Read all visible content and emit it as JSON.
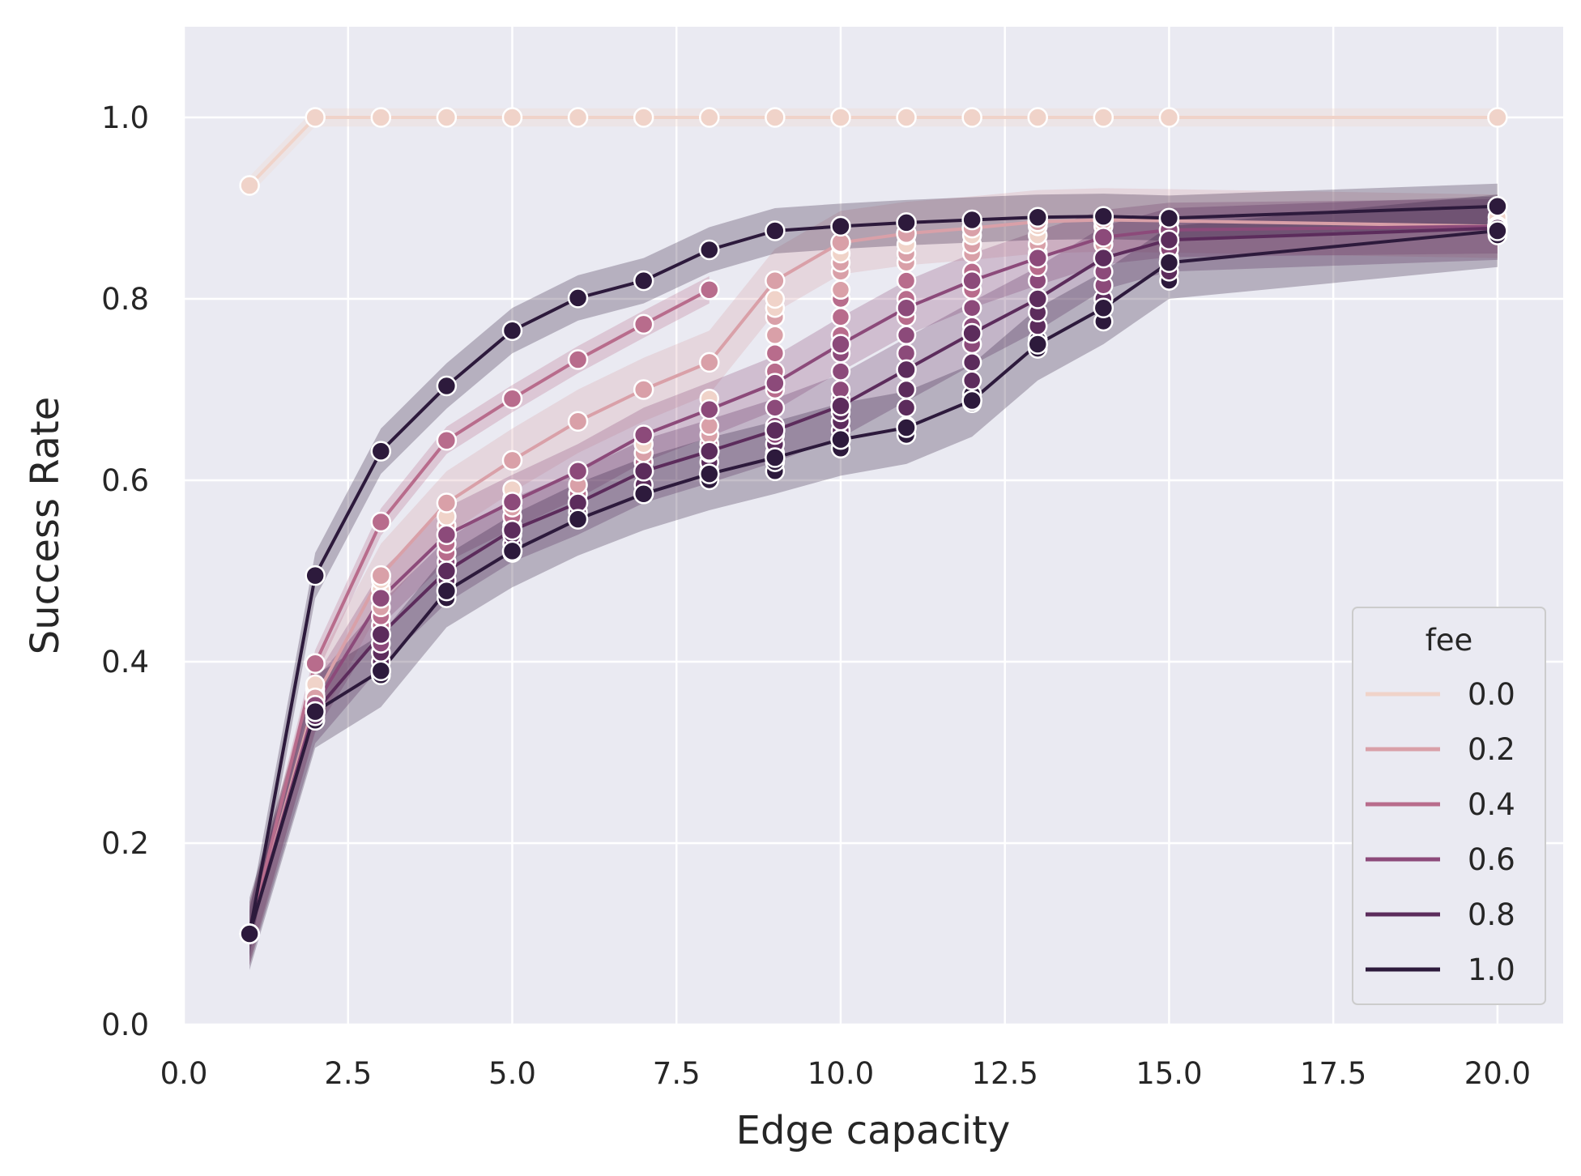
{
  "chart_data": {
    "type": "line",
    "xlabel": "Edge capacity",
    "ylabel": "Success Rate",
    "xlim": [
      0,
      21
    ],
    "ylim": [
      0,
      1.1
    ],
    "xticks": [
      "0.0",
      "2.5",
      "5.0",
      "7.5",
      "10.0",
      "12.5",
      "15.0",
      "17.5",
      "20.0"
    ],
    "yticks": [
      "0.0",
      "0.2",
      "0.4",
      "0.6",
      "0.8",
      "1.0"
    ],
    "grid": true,
    "legend": {
      "title": "fee",
      "position": "lower-right",
      "entries": [
        "0.0",
        "0.2",
        "0.4",
        "0.6",
        "0.8",
        "1.0"
      ]
    },
    "series": [
      {
        "name": "0.0",
        "color": "#f0d3c9",
        "x": [
          1,
          2,
          3,
          4,
          5,
          6,
          7,
          8,
          9,
          10,
          11,
          12,
          13,
          14,
          15,
          20
        ],
        "y": [
          0.925,
          1.0,
          1.0,
          1.0,
          1.0,
          1.0,
          1.0,
          1.0,
          1.0,
          1.0,
          1.0,
          1.0,
          1.0,
          1.0,
          1.0,
          1.0
        ],
        "band": 0.01
      },
      {
        "name": "0.2",
        "color": "#d9a0a8",
        "x": [
          1,
          2,
          3,
          4,
          5,
          6,
          7,
          8,
          9,
          10,
          11,
          12,
          13,
          14,
          15,
          20
        ],
        "y": [
          0.1,
          0.36,
          0.495,
          0.575,
          0.622,
          0.665,
          0.7,
          0.73,
          0.82,
          0.862,
          0.872,
          0.878,
          0.885,
          0.887,
          0.886,
          0.88
        ],
        "band": 0.035
      },
      {
        "name": "0.4",
        "color": "#b86c8c",
        "x": [
          1,
          2,
          3,
          4,
          5,
          6,
          7,
          8
        ],
        "y": [
          0.1,
          0.398,
          0.554,
          0.644,
          0.69,
          0.733,
          0.772,
          0.81
        ],
        "band": 0.015
      },
      {
        "name": "0.6",
        "color": "#8c4a7a",
        "x": [
          1,
          2,
          3,
          4,
          5,
          6,
          7,
          8,
          9,
          10,
          11,
          12,
          13,
          14,
          15,
          20
        ],
        "y": [
          0.1,
          0.352,
          0.47,
          0.54,
          0.576,
          0.61,
          0.65,
          0.678,
          0.707,
          0.75,
          0.79,
          0.82,
          0.845,
          0.868,
          0.876,
          0.88
        ],
        "band": 0.03
      },
      {
        "name": "0.8",
        "color": "#5c2c5c",
        "x": [
          1,
          2,
          3,
          4,
          5,
          6,
          7,
          8,
          9,
          10,
          11,
          12,
          13,
          14,
          15,
          20
        ],
        "y": [
          0.1,
          0.345,
          0.43,
          0.5,
          0.545,
          0.575,
          0.61,
          0.632,
          0.655,
          0.682,
          0.722,
          0.762,
          0.8,
          0.845,
          0.865,
          0.878
        ],
        "band": 0.035
      },
      {
        "name": "1.0",
        "color": "#2d1a3c",
        "x": [
          1,
          2,
          3,
          4,
          5,
          6,
          7,
          8,
          9,
          10,
          11,
          12,
          13,
          14,
          15,
          20
        ],
        "y": [
          0.1,
          0.345,
          0.39,
          0.478,
          0.522,
          0.557,
          0.585,
          0.607,
          0.625,
          0.645,
          0.658,
          0.688,
          0.75,
          0.79,
          0.84,
          0.875
        ],
        "band": 0.04
      },
      {
        "name": "",
        "color": "#2d1a3c",
        "x": [
          1,
          2,
          3,
          4,
          5,
          6,
          7,
          8,
          9,
          10,
          11,
          12,
          13,
          14,
          15,
          20
        ],
        "y": [
          0.1,
          0.495,
          0.632,
          0.704,
          0.765,
          0.801,
          0.82,
          0.854,
          0.875,
          0.88,
          0.884,
          0.887,
          0.89,
          0.891,
          0.889,
          0.902
        ],
        "band": 0.025
      }
    ],
    "scatter_clusters": [
      {
        "x": 2,
        "y": [
          0.335,
          0.34,
          0.345,
          0.35,
          0.355,
          0.36,
          0.365,
          0.37,
          0.375
        ]
      },
      {
        "x": 3,
        "y": [
          0.385,
          0.39,
          0.4,
          0.41,
          0.42,
          0.43,
          0.44,
          0.45,
          0.46,
          0.47,
          0.48,
          0.49
        ]
      },
      {
        "x": 4,
        "y": [
          0.47,
          0.48,
          0.49,
          0.5,
          0.51,
          0.52,
          0.53,
          0.54,
          0.55,
          0.56
        ]
      },
      {
        "x": 5,
        "y": [
          0.52,
          0.53,
          0.54,
          0.55,
          0.56,
          0.57,
          0.58,
          0.59
        ]
      },
      {
        "x": 6,
        "y": [
          0.557,
          0.565,
          0.575,
          0.585,
          0.595,
          0.61
        ]
      },
      {
        "x": 7,
        "y": [
          0.585,
          0.595,
          0.61,
          0.62,
          0.63,
          0.64
        ]
      },
      {
        "x": 8,
        "y": [
          0.6,
          0.61,
          0.62,
          0.63,
          0.64,
          0.65,
          0.66,
          0.69
        ]
      },
      {
        "x": 9,
        "y": [
          0.61,
          0.62,
          0.63,
          0.64,
          0.65,
          0.66,
          0.68,
          0.7,
          0.72,
          0.74,
          0.76,
          0.78,
          0.79,
          0.8
        ]
      },
      {
        "x": 10,
        "y": [
          0.635,
          0.645,
          0.655,
          0.665,
          0.675,
          0.69,
          0.7,
          0.72,
          0.74,
          0.76,
          0.78,
          0.8,
          0.81,
          0.83,
          0.84,
          0.85,
          0.86
        ]
      },
      {
        "x": 11,
        "y": [
          0.65,
          0.66,
          0.68,
          0.7,
          0.72,
          0.74,
          0.76,
          0.78,
          0.8,
          0.82,
          0.84,
          0.85,
          0.86,
          0.87
        ]
      },
      {
        "x": 12,
        "y": [
          0.685,
          0.695,
          0.71,
          0.73,
          0.75,
          0.77,
          0.79,
          0.81,
          0.83,
          0.85,
          0.86,
          0.87,
          0.88
        ]
      },
      {
        "x": 13,
        "y": [
          0.745,
          0.755,
          0.77,
          0.785,
          0.8,
          0.82,
          0.835,
          0.85,
          0.86,
          0.87,
          0.88
        ]
      },
      {
        "x": 14,
        "y": [
          0.775,
          0.79,
          0.8,
          0.815,
          0.83,
          0.845,
          0.86,
          0.87,
          0.88
        ]
      },
      {
        "x": 15,
        "y": [
          0.82,
          0.83,
          0.845,
          0.855,
          0.865,
          0.875,
          0.885
        ]
      },
      {
        "x": 20,
        "y": [
          0.87,
          0.875,
          0.88,
          0.885,
          0.89
        ]
      }
    ]
  }
}
